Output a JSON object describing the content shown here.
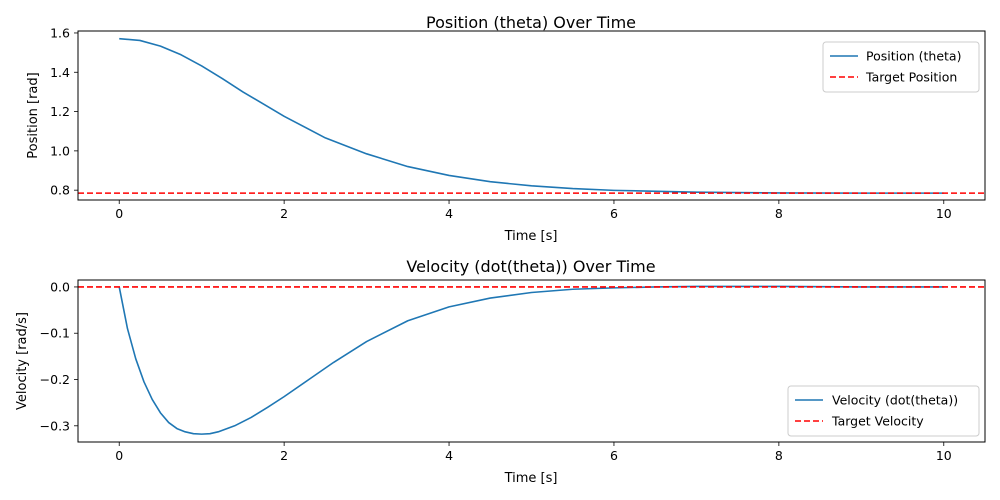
{
  "chart_data": [
    {
      "type": "line",
      "title": "Position (theta) Over Time",
      "xlabel": "Time [s]",
      "ylabel": "Position [rad]",
      "xlim": [
        -0.5,
        10.5
      ],
      "ylim": [
        0.75,
        1.61
      ],
      "xticks": [
        0,
        2,
        4,
        6,
        8,
        10
      ],
      "xtick_labels": [
        "0",
        "2",
        "4",
        "6",
        "8",
        "10"
      ],
      "yticks": [
        0.8,
        1.0,
        1.2,
        1.4,
        1.6
      ],
      "ytick_labels": [
        "0.8",
        "1.0",
        "1.2",
        "1.4",
        "1.6"
      ],
      "grid": false,
      "legend": "upper right",
      "series": [
        {
          "name": "Position (theta)",
          "color": "#1f77b4",
          "style": "solid",
          "x": [
            0,
            0.25,
            0.5,
            0.75,
            1,
            1.25,
            1.5,
            1.75,
            2,
            2.5,
            3,
            3.5,
            4,
            4.5,
            5,
            5.5,
            6,
            7,
            8,
            9,
            10
          ],
          "y": [
            1.571,
            1.562,
            1.533,
            1.489,
            1.432,
            1.368,
            1.3,
            1.238,
            1.176,
            1.066,
            0.985,
            0.92,
            0.875,
            0.843,
            0.822,
            0.808,
            0.799,
            0.79,
            0.786,
            0.785,
            0.785
          ]
        },
        {
          "name": "Target Position",
          "color": "#ff0000",
          "style": "dashed",
          "x": [
            -0.5,
            10.5
          ],
          "y": [
            0.785,
            0.785
          ]
        }
      ]
    },
    {
      "type": "line",
      "title": "Velocity (dot(theta)) Over Time",
      "xlabel": "Time [s]",
      "ylabel": "Velocity [rad/s]",
      "xlim": [
        -0.5,
        10.5
      ],
      "ylim": [
        -0.335,
        0.015
      ],
      "xticks": [
        0,
        2,
        4,
        6,
        8,
        10
      ],
      "xtick_labels": [
        "0",
        "2",
        "4",
        "6",
        "8",
        "10"
      ],
      "yticks": [
        -0.3,
        -0.2,
        -0.1,
        0.0
      ],
      "ytick_labels": [
        "−0.3",
        "−0.2",
        "−0.1",
        "0.0"
      ],
      "grid": false,
      "legend": "lower right",
      "series": [
        {
          "name": "Velocity (dot(theta))",
          "color": "#1f77b4",
          "style": "solid",
          "x": [
            0,
            0.1,
            0.2,
            0.3,
            0.4,
            0.5,
            0.6,
            0.7,
            0.8,
            0.9,
            1.0,
            1.1,
            1.2,
            1.4,
            1.6,
            1.8,
            2.0,
            2.3,
            2.6,
            3.0,
            3.5,
            4.0,
            4.5,
            5.0,
            5.5,
            6.0,
            6.5,
            7.0,
            8.0,
            9.0,
            10.0
          ],
          "y": [
            0,
            -0.09,
            -0.155,
            -0.205,
            -0.243,
            -0.272,
            -0.293,
            -0.306,
            -0.313,
            -0.317,
            -0.318,
            -0.317,
            -0.313,
            -0.3,
            -0.282,
            -0.26,
            -0.237,
            -0.2,
            -0.163,
            -0.118,
            -0.073,
            -0.043,
            -0.024,
            -0.012,
            -0.005,
            -0.002,
            0.0,
            0.001,
            0.001,
            0.0,
            0.0
          ]
        },
        {
          "name": "Target Velocity",
          "color": "#ff0000",
          "style": "dashed",
          "x": [
            -0.5,
            10.5
          ],
          "y": [
            0,
            0
          ]
        }
      ]
    }
  ]
}
